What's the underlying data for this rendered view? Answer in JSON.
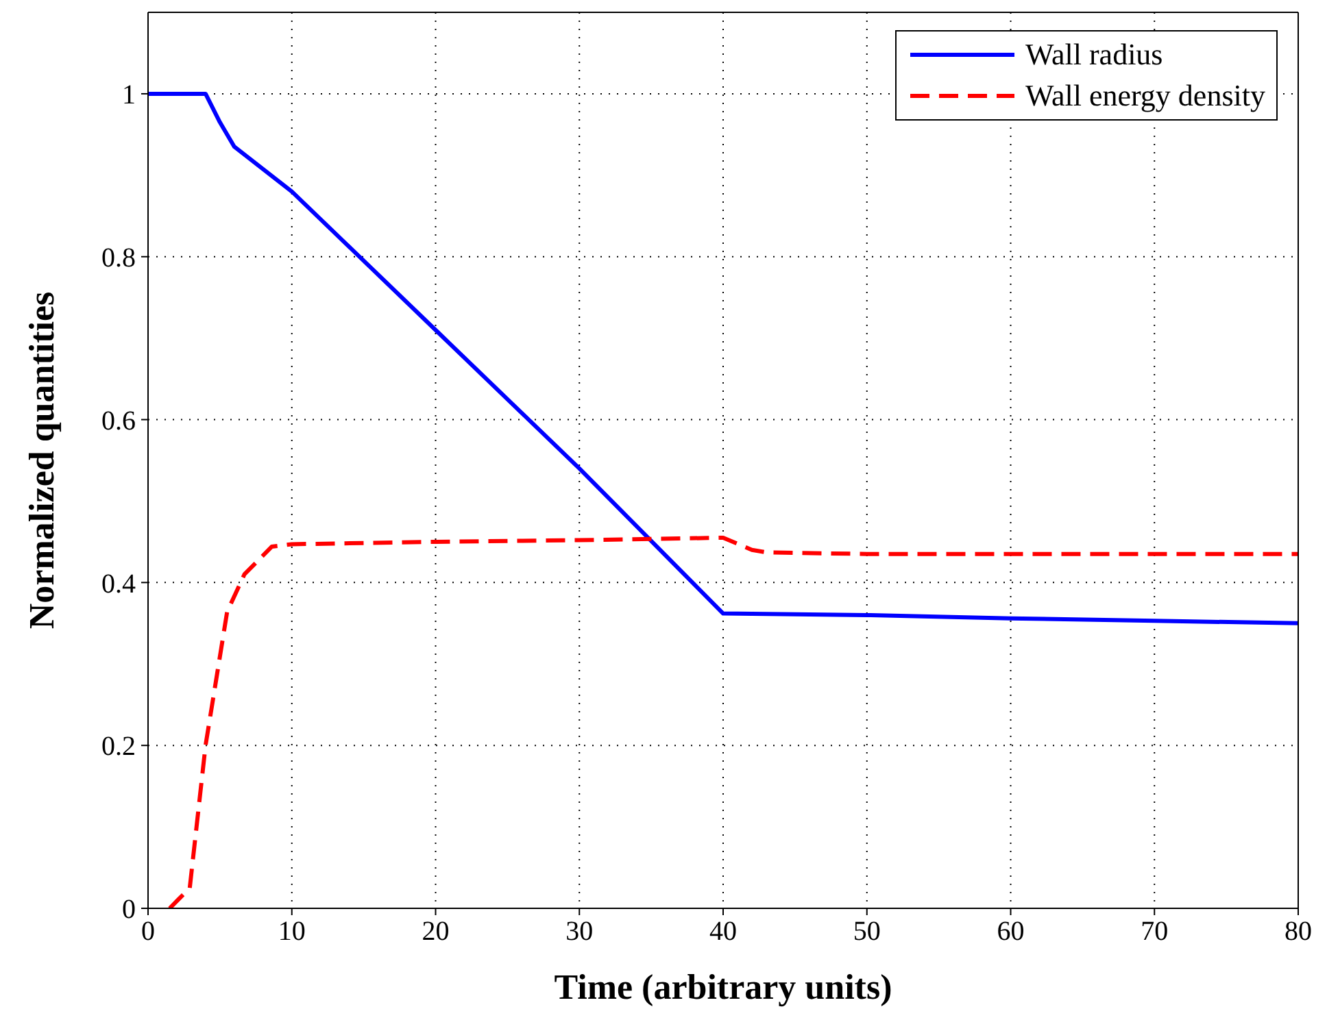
{
  "chart_data": {
    "type": "line",
    "xlabel": "Time (arbitrary units)",
    "ylabel": "Normalized quantities",
    "xlim": [
      0,
      80
    ],
    "xticks": [
      0,
      10,
      20,
      30,
      40,
      50,
      60,
      70,
      80
    ],
    "ylim": [
      0,
      1.1
    ],
    "yticks": [
      0,
      0.2,
      0.4,
      0.6,
      0.8,
      1
    ],
    "grid": true,
    "legend": "top right",
    "series": [
      {
        "name": "Wall radius",
        "color": "#0000ff",
        "line_style": "solid",
        "x": [
          0,
          4,
          5,
          6,
          10,
          20,
          30,
          40,
          50,
          60,
          70,
          80
        ],
        "values": [
          1,
          1,
          0.965,
          0.935,
          0.88,
          0.71,
          0.54,
          0.362,
          0.36,
          0.356,
          0.353,
          0.35
        ]
      },
      {
        "name": "Wall energy density",
        "color": "#ff0000",
        "line_style": "dashed",
        "x": [
          1.5,
          2.9,
          4,
          5.5,
          6.7,
          8.6,
          10,
          20,
          30,
          40,
          42,
          43,
          50,
          80
        ],
        "values": [
          0,
          0.025,
          0.2,
          0.364,
          0.41,
          0.444,
          0.447,
          0.45,
          0.452,
          0.455,
          0.44,
          0.437,
          0.435,
          0.435
        ]
      }
    ]
  }
}
